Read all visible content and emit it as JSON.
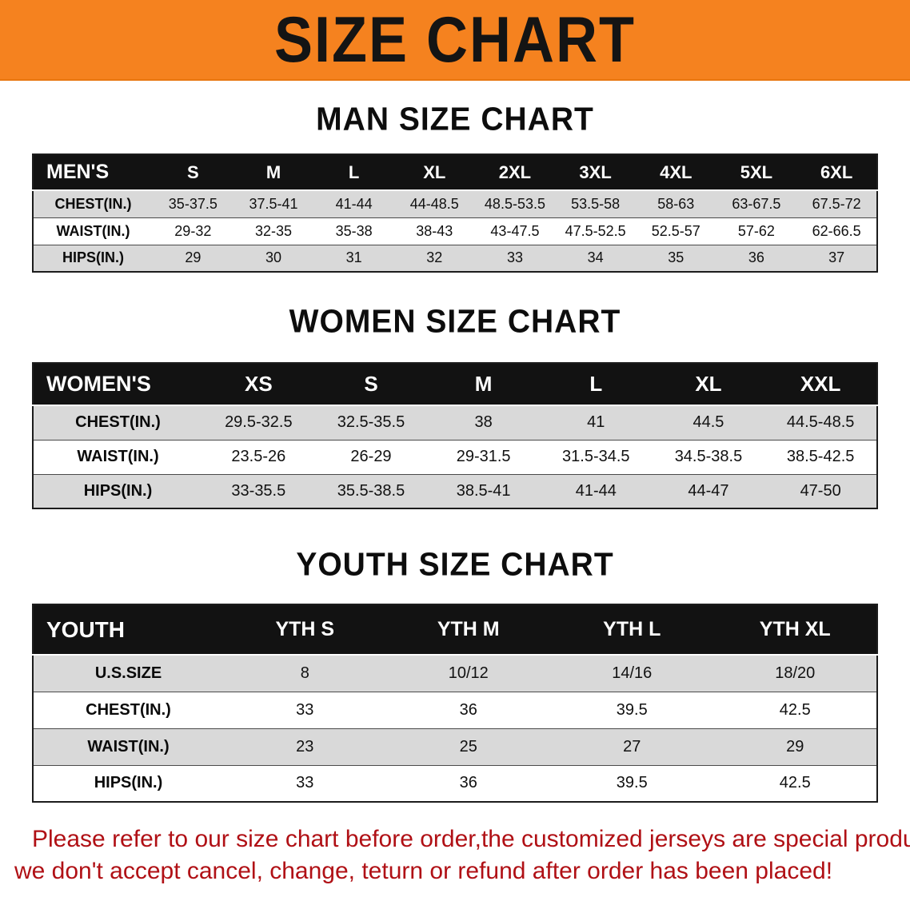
{
  "banner": {
    "title": "SIZE CHART",
    "bg_color": "#f5821f"
  },
  "colors": {
    "table_header_bg": "#121212",
    "row_alt_gray": "#d9d9d9",
    "disclaimer_red": "#b01015"
  },
  "sections": [
    {
      "heading": "MAN SIZE CHART",
      "table": {
        "header": [
          "MEN'S",
          "S",
          "M",
          "L",
          "XL",
          "2XL",
          "3XL",
          "4XL",
          "5XL",
          "6XL"
        ],
        "rows": [
          {
            "label": "CHEST(IN.)",
            "values": [
              "35-37.5",
              "37.5-41",
              "41-44",
              "44-48.5",
              "48.5-53.5",
              "53.5-58",
              "58-63",
              "63-67.5",
              "67.5-72"
            ]
          },
          {
            "label": "WAIST(IN.)",
            "values": [
              "29-32",
              "32-35",
              "35-38",
              "38-43",
              "43-47.5",
              "47.5-52.5",
              "52.5-57",
              "57-62",
              "62-66.5"
            ]
          },
          {
            "label": "HIPS(IN.)",
            "values": [
              "29",
              "30",
              "31",
              "32",
              "33",
              "34",
              "35",
              "36",
              "37"
            ]
          }
        ]
      }
    },
    {
      "heading": "WOMEN SIZE CHART",
      "table": {
        "header": [
          "WOMEN'S",
          "XS",
          "S",
          "M",
          "L",
          "XL",
          "XXL"
        ],
        "rows": [
          {
            "label": "CHEST(IN.)",
            "values": [
              "29.5-32.5",
              "32.5-35.5",
              "38",
              "41",
              "44.5",
              "44.5-48.5"
            ]
          },
          {
            "label": "WAIST(IN.)",
            "values": [
              "23.5-26",
              "26-29",
              "29-31.5",
              "31.5-34.5",
              "34.5-38.5",
              "38.5-42.5"
            ]
          },
          {
            "label": "HIPS(IN.)",
            "values": [
              "33-35.5",
              "35.5-38.5",
              "38.5-41",
              "41-44",
              "44-47",
              "47-50"
            ]
          }
        ]
      }
    },
    {
      "heading": "YOUTH SIZE CHART",
      "table": {
        "header": [
          "YOUTH",
          "YTH S",
          "YTH M",
          "YTH L",
          "YTH XL"
        ],
        "rows": [
          {
            "label": "U.S.SIZE",
            "values": [
              "8",
              "10/12",
              "14/16",
              "18/20"
            ]
          },
          {
            "label": "CHEST(IN.)",
            "values": [
              "33",
              "36",
              "39.5",
              "42.5"
            ]
          },
          {
            "label": "WAIST(IN.)",
            "values": [
              "23",
              "25",
              "27",
              "29"
            ]
          },
          {
            "label": "HIPS(IN.)",
            "values": [
              "33",
              "36",
              "39.5",
              "42.5"
            ]
          }
        ]
      }
    }
  ],
  "disclaimer": {
    "line1": "Please refer to our size chart before order,the customized jerseys are special products,",
    "line2": "we don't accept cancel, change, teturn or refund after order has been placed!"
  }
}
